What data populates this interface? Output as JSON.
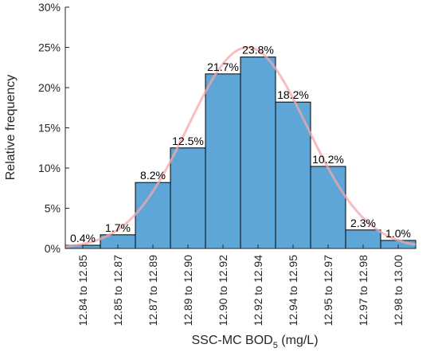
{
  "chart_data": {
    "type": "bar",
    "categories": [
      "12.84 to 12.85",
      "12.85 to 12.87",
      "12.87 to 12.89",
      "12.89 to 12.90",
      "12.90 to 12.92",
      "12.92 to 12.94",
      "12.94 to 12.95",
      "12.95 to 12.97",
      "12.97 to 12.98",
      "12.98 to 13.00"
    ],
    "values": [
      0.4,
      1.7,
      8.2,
      12.5,
      21.7,
      23.8,
      18.2,
      10.2,
      2.3,
      1.0
    ],
    "data_labels": [
      "0.4%",
      "1.7%",
      "8.2%",
      "12.5%",
      "21.7%",
      "23.8%",
      "18.2%",
      "10.2%",
      "2.3%",
      "1.0%"
    ],
    "xlabel_main": "SSC-MC BOD",
    "xlabel_sub": "5",
    "xlabel_tail": " (mg/L)",
    "ylabel": "Relative frequency",
    "ylim": [
      0,
      30
    ],
    "yticks": [
      0,
      5,
      10,
      15,
      20,
      25,
      30
    ],
    "ytick_labels": [
      "0%",
      "5%",
      "10%",
      "15%",
      "20%",
      "25%",
      "30%"
    ],
    "bar_color": "#5ea6d8",
    "fit_curve": {
      "type": "normal",
      "color": "#f4a7a9",
      "mean_bin": 5.2,
      "sd_bins": 1.7,
      "peak": 25.0
    },
    "grid": false
  }
}
